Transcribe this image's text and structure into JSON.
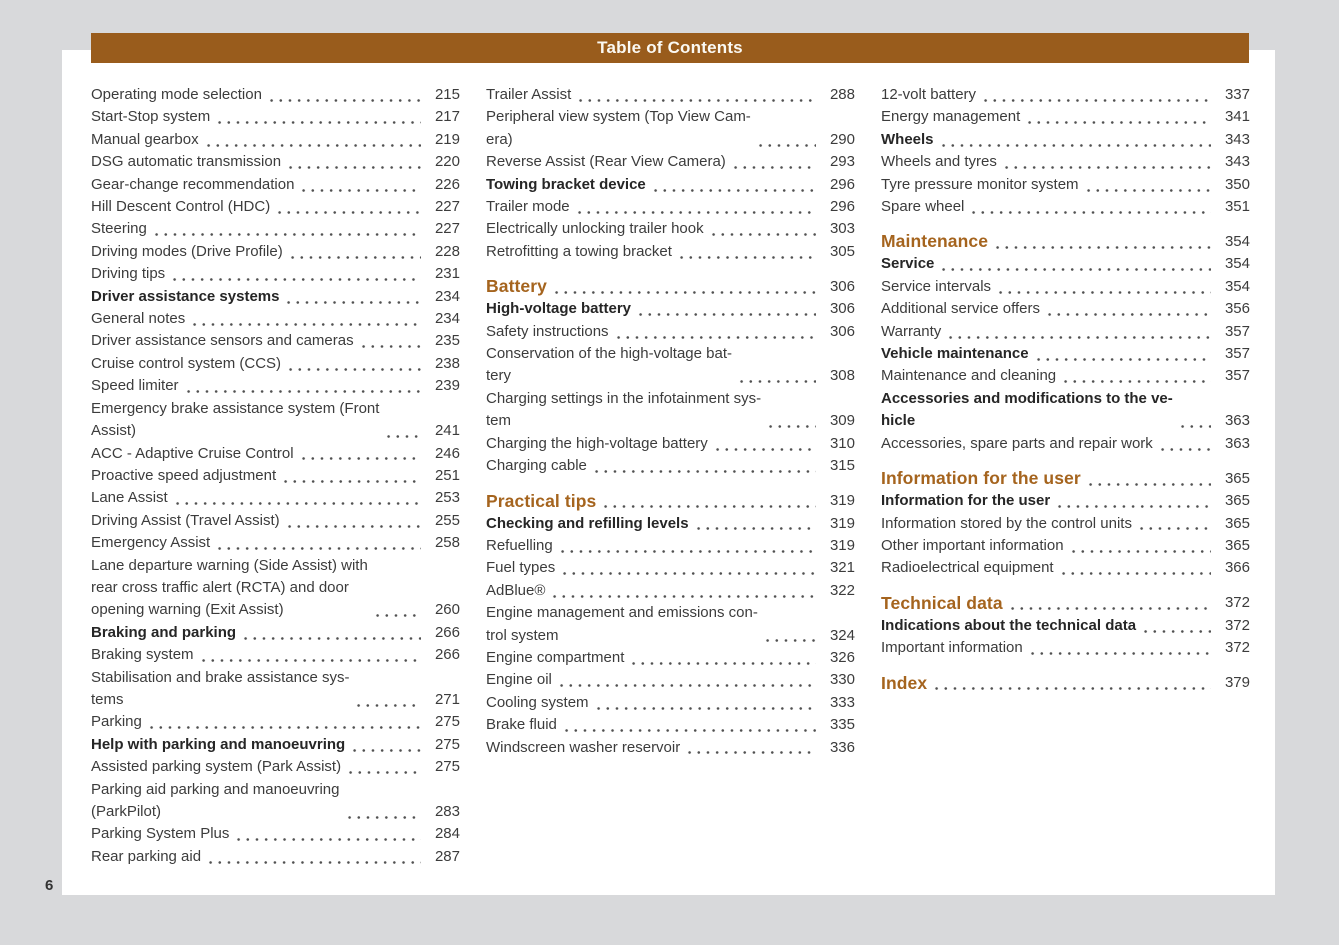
{
  "header": {
    "title": "Table of Contents"
  },
  "page_number": "6",
  "colors": {
    "canvas_bg": "#d8d9db",
    "page_bg": "#ffffff",
    "header_bar_bg": "#995c1c",
    "header_bar_text": "#fbf9f3",
    "section_heading_text": "#a5641e",
    "body_text": "#3c3c3c",
    "bold_text": "#262626"
  },
  "columns": [
    {
      "entries": [
        {
          "label": "Operating mode selection",
          "page": "215",
          "style": "normal"
        },
        {
          "label": "Start-Stop system",
          "page": "217",
          "style": "normal"
        },
        {
          "label": "Manual gearbox",
          "page": "219",
          "style": "normal"
        },
        {
          "label": "DSG automatic transmission",
          "page": "220",
          "style": "normal"
        },
        {
          "label": "Gear-change recommendation",
          "page": "226",
          "style": "normal"
        },
        {
          "label": "Hill Descent Control (HDC)",
          "page": "227",
          "style": "normal"
        },
        {
          "label": "Steering",
          "page": "227",
          "style": "normal"
        },
        {
          "label": "Driving modes (Drive Profile)",
          "page": "228",
          "style": "normal"
        },
        {
          "label": "Driving tips",
          "page": "231",
          "style": "normal"
        },
        {
          "label": "Driver assistance systems",
          "page": "234",
          "style": "bold"
        },
        {
          "label": "General notes",
          "page": "234",
          "style": "normal"
        },
        {
          "label": "Driver assistance sensors and cameras",
          "page": "235",
          "style": "normal"
        },
        {
          "label": "Cruise control system (CCS)",
          "page": "238",
          "style": "normal"
        },
        {
          "label": "Speed limiter",
          "page": "239",
          "style": "normal"
        },
        {
          "label": "Emergency brake assistance system (Front\nAssist)",
          "page": "241",
          "style": "normal"
        },
        {
          "label": "ACC - Adaptive Cruise Control",
          "page": "246",
          "style": "normal"
        },
        {
          "label": "Proactive speed adjustment",
          "page": "251",
          "style": "normal"
        },
        {
          "label": "Lane Assist",
          "page": "253",
          "style": "normal"
        },
        {
          "label": "Driving Assist (Travel Assist)",
          "page": "255",
          "style": "normal"
        },
        {
          "label": "Emergency Assist",
          "page": "258",
          "style": "normal"
        },
        {
          "label": "Lane departure warning (Side Assist) with\nrear cross traffic alert (RCTA) and door\nopening warning (Exit Assist)",
          "page": "260",
          "style": "normal"
        },
        {
          "label": "Braking and parking",
          "page": "266",
          "style": "bold"
        },
        {
          "label": "Braking system",
          "page": "266",
          "style": "normal"
        },
        {
          "label": "Stabilisation and brake assistance sys-\ntems",
          "page": "271",
          "style": "normal"
        },
        {
          "label": "Parking",
          "page": "275",
          "style": "normal"
        },
        {
          "label": "Help with parking and manoeuvring",
          "page": "275",
          "style": "bold"
        },
        {
          "label": "Assisted parking system (Park Assist)",
          "page": "275",
          "style": "normal"
        },
        {
          "label": "Parking aid parking and manoeuvring\n(ParkPilot)",
          "page": "283",
          "style": "normal"
        },
        {
          "label": "Parking System Plus",
          "page": "284",
          "style": "normal"
        },
        {
          "label": "Rear parking aid",
          "page": "287",
          "style": "normal"
        }
      ]
    },
    {
      "entries": [
        {
          "label": "Trailer Assist",
          "page": "288",
          "style": "normal"
        },
        {
          "label": "Peripheral view system (Top View Cam-\nera)",
          "page": "290",
          "style": "normal"
        },
        {
          "label": "Reverse Assist (Rear View Camera)",
          "page": "293",
          "style": "normal"
        },
        {
          "label": "Towing bracket device",
          "page": "296",
          "style": "bold"
        },
        {
          "label": "Trailer mode",
          "page": "296",
          "style": "normal"
        },
        {
          "label": "Electrically unlocking trailer hook",
          "page": "303",
          "style": "normal"
        },
        {
          "label": "Retrofitting a towing bracket",
          "page": "305",
          "style": "normal"
        },
        {
          "label": "Battery",
          "page": "306",
          "style": "heading"
        },
        {
          "label": "High-voltage battery",
          "page": "306",
          "style": "bold"
        },
        {
          "label": "Safety instructions",
          "page": "306",
          "style": "normal"
        },
        {
          "label": "Conservation of the high-voltage bat-\ntery",
          "page": "308",
          "style": "normal"
        },
        {
          "label": "Charging settings in the infotainment sys-\ntem",
          "page": "309",
          "style": "normal"
        },
        {
          "label": "Charging the high-voltage battery",
          "page": "310",
          "style": "normal"
        },
        {
          "label": "Charging cable",
          "page": "315",
          "style": "normal"
        },
        {
          "label": "Practical tips",
          "page": "319",
          "style": "heading"
        },
        {
          "label": "Checking and refilling levels",
          "page": "319",
          "style": "bold"
        },
        {
          "label": "Refuelling",
          "page": "319",
          "style": "normal"
        },
        {
          "label": "Fuel types",
          "page": "321",
          "style": "normal"
        },
        {
          "label": "AdBlue®",
          "page": "322",
          "style": "normal"
        },
        {
          "label": "Engine management and emissions con-\ntrol system",
          "page": "324",
          "style": "normal"
        },
        {
          "label": "Engine compartment",
          "page": "326",
          "style": "normal"
        },
        {
          "label": "Engine oil",
          "page": "330",
          "style": "normal"
        },
        {
          "label": "Cooling system",
          "page": "333",
          "style": "normal"
        },
        {
          "label": "Brake fluid",
          "page": "335",
          "style": "normal"
        },
        {
          "label": "Windscreen washer reservoir",
          "page": "336",
          "style": "normal"
        }
      ]
    },
    {
      "entries": [
        {
          "label": "12-volt battery",
          "page": "337",
          "style": "normal"
        },
        {
          "label": "Energy management",
          "page": "341",
          "style": "normal"
        },
        {
          "label": "Wheels",
          "page": "343",
          "style": "bold"
        },
        {
          "label": "Wheels and tyres",
          "page": "343",
          "style": "normal"
        },
        {
          "label": "Tyre pressure monitor system",
          "page": "350",
          "style": "normal"
        },
        {
          "label": "Spare wheel",
          "page": "351",
          "style": "normal"
        },
        {
          "label": "Maintenance",
          "page": "354",
          "style": "heading"
        },
        {
          "label": "Service",
          "page": "354",
          "style": "bold"
        },
        {
          "label": "Service intervals",
          "page": "354",
          "style": "normal"
        },
        {
          "label": "Additional service offers",
          "page": "356",
          "style": "normal"
        },
        {
          "label": "Warranty",
          "page": "357",
          "style": "normal"
        },
        {
          "label": "Vehicle maintenance",
          "page": "357",
          "style": "bold"
        },
        {
          "label": "Maintenance and cleaning",
          "page": "357",
          "style": "normal"
        },
        {
          "label": "Accessories and modifications to the ve-\nhicle",
          "page": "363",
          "style": "bold"
        },
        {
          "label": "Accessories, spare parts and repair work",
          "page": "363",
          "style": "normal"
        },
        {
          "label": "Information for the user",
          "page": "365",
          "style": "heading"
        },
        {
          "label": "Information for the user",
          "page": "365",
          "style": "bold"
        },
        {
          "label": "Information stored by the control units",
          "page": "365",
          "style": "normal"
        },
        {
          "label": "Other important information",
          "page": "365",
          "style": "normal"
        },
        {
          "label": "Radioelectrical equipment",
          "page": "366",
          "style": "normal"
        },
        {
          "label": "Technical data",
          "page": "372",
          "style": "heading"
        },
        {
          "label": "Indications about the technical data",
          "page": "372",
          "style": "bold"
        },
        {
          "label": "Important information",
          "page": "372",
          "style": "normal"
        },
        {
          "label": "Index",
          "page": "379",
          "style": "heading"
        }
      ]
    }
  ]
}
